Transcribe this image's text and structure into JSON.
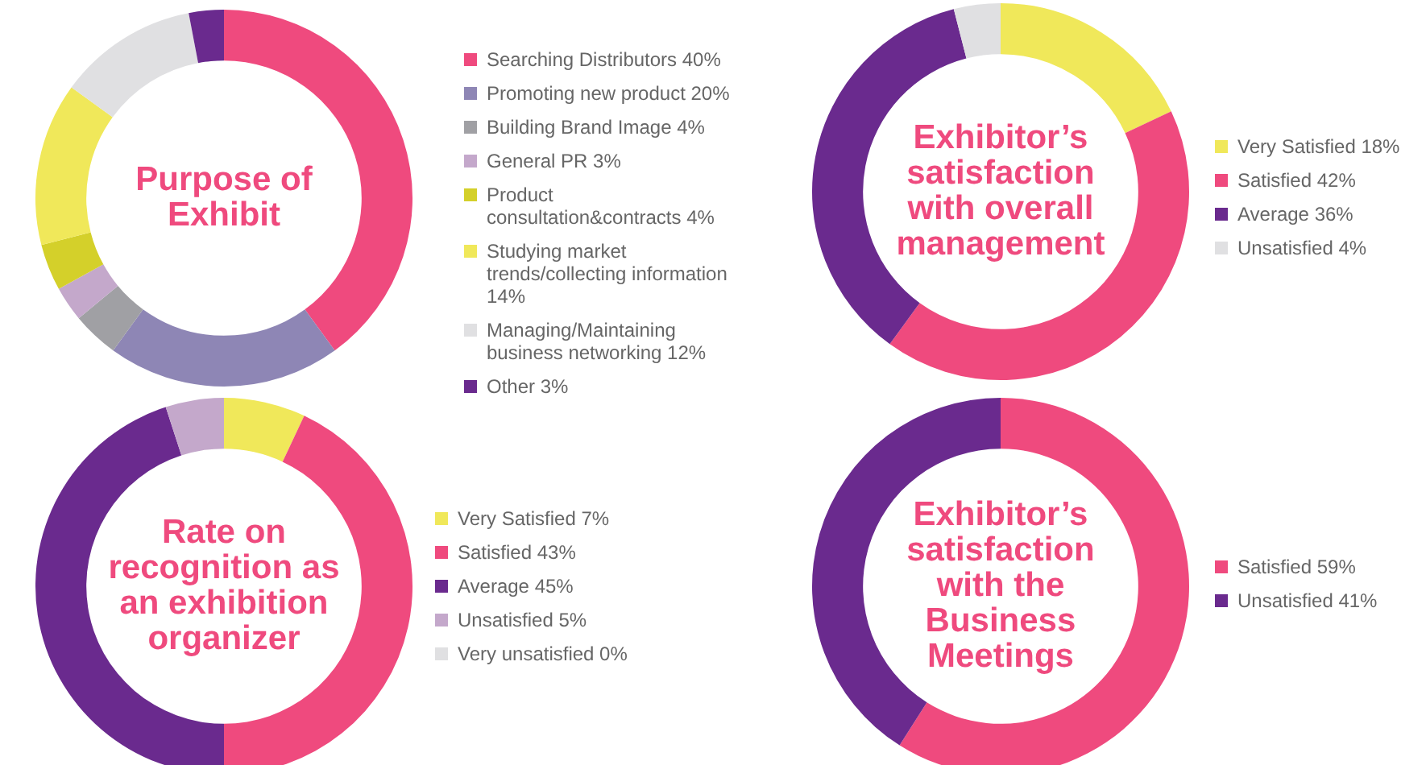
{
  "chart_data": [
    {
      "type": "donut",
      "title": "Purpose of Exhibit",
      "legend": "right",
      "categories": [
        "Searching Distributors 40%",
        "Promoting new product 20%",
        "Building Brand Image 4%",
        "General PR 3%",
        "Product consultation&contracts 4%",
        "Studying market trends/collecting information 14%",
        "Managing/Maintaining business networking 12%",
        "Other 3%"
      ],
      "values": [
        40,
        20,
        4,
        3,
        4,
        14,
        12,
        3
      ],
      "colors": [
        "#ef4a7e",
        "#8e86b5",
        "#a0a0a4",
        "#c4a8cb",
        "#d4d02a",
        "#f0e85a",
        "#e0e0e2",
        "#6a2a8e"
      ]
    },
    {
      "type": "donut",
      "title": "Exhibitor’s satisfaction with overall management",
      "legend": "right",
      "categories": [
        "Very Satisfied 18%",
        "Satisfied 42%",
        "Average 36%",
        "Unsatisfied 4%"
      ],
      "values": [
        18,
        42,
        36,
        4
      ],
      "colors": [
        "#f0e85a",
        "#ef4a7e",
        "#6a2a8e",
        "#e0e0e2"
      ]
    },
    {
      "type": "donut",
      "title": "Rate on recognition as an exhibition organizer",
      "legend": "right",
      "categories": [
        "Very Satisfied 7%",
        "Satisfied 43%",
        "Average 45%",
        "Unsatisfied 5%",
        "Very unsatisfied 0%"
      ],
      "values": [
        7,
        43,
        45,
        5,
        0
      ],
      "colors": [
        "#f0e85a",
        "#ef4a7e",
        "#6a2a8e",
        "#c4a8cb",
        "#e0e0e2"
      ]
    },
    {
      "type": "donut",
      "title": "Exhibitor’s satisfaction with the Business Meetings",
      "legend": "right",
      "categories": [
        "Satisfied 59%",
        "Unsatisfied 41%"
      ],
      "values": [
        59,
        41
      ],
      "colors": [
        "#ef4a7e",
        "#6a2a8e"
      ]
    }
  ]
}
